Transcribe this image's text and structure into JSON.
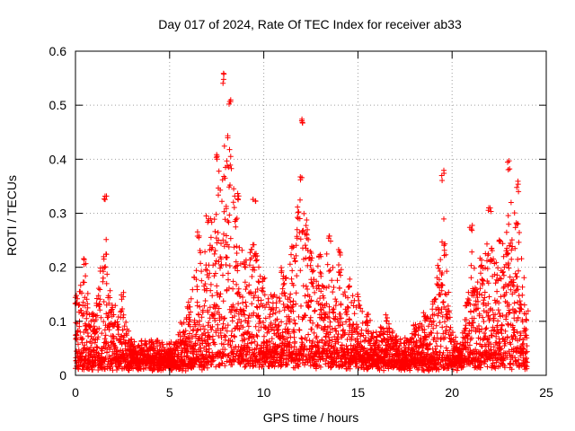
{
  "chart_data": {
    "type": "scatter",
    "title": "Day 017 of 2024, Rate Of TEC Index for receiver ab33",
    "xlabel": "GPS time / hours",
    "ylabel": "ROTI / TECUs",
    "xlim": [
      0,
      25
    ],
    "ylim": [
      0,
      0.6
    ],
    "xticks": [
      "0",
      "5",
      "10",
      "15",
      "20",
      "25"
    ],
    "yticks": [
      "0",
      "0.1",
      "0.2",
      "0.3",
      "0.4",
      "0.5",
      "0.6"
    ],
    "grid": true,
    "marker": "plus",
    "color": "#ff0000",
    "series": [
      {
        "values_summary": "dense ROTI samples over 0-24 h",
        "envelope": [
          {
            "x": 0.0,
            "y": 0.15
          },
          {
            "x": 0.5,
            "y": 0.22
          },
          {
            "x": 1.0,
            "y": 0.12
          },
          {
            "x": 1.6,
            "y": 0.34
          },
          {
            "x": 2.0,
            "y": 0.14
          },
          {
            "x": 2.5,
            "y": 0.16
          },
          {
            "x": 3.0,
            "y": 0.07
          },
          {
            "x": 4.0,
            "y": 0.07
          },
          {
            "x": 5.0,
            "y": 0.06
          },
          {
            "x": 6.0,
            "y": 0.14
          },
          {
            "x": 6.5,
            "y": 0.27
          },
          {
            "x": 7.0,
            "y": 0.3
          },
          {
            "x": 7.5,
            "y": 0.41
          },
          {
            "x": 7.9,
            "y": 0.56
          },
          {
            "x": 8.2,
            "y": 0.52
          },
          {
            "x": 8.6,
            "y": 0.34
          },
          {
            "x": 9.0,
            "y": 0.22
          },
          {
            "x": 9.5,
            "y": 0.33
          },
          {
            "x": 10.0,
            "y": 0.18
          },
          {
            "x": 10.5,
            "y": 0.15
          },
          {
            "x": 11.0,
            "y": 0.2
          },
          {
            "x": 11.5,
            "y": 0.24
          },
          {
            "x": 12.0,
            "y": 0.48
          },
          {
            "x": 12.5,
            "y": 0.23
          },
          {
            "x": 13.0,
            "y": 0.23
          },
          {
            "x": 13.5,
            "y": 0.26
          },
          {
            "x": 14.0,
            "y": 0.24
          },
          {
            "x": 14.5,
            "y": 0.18
          },
          {
            "x": 15.0,
            "y": 0.15
          },
          {
            "x": 15.5,
            "y": 0.12
          },
          {
            "x": 16.0,
            "y": 0.08
          },
          {
            "x": 16.5,
            "y": 0.12
          },
          {
            "x": 17.0,
            "y": 0.08
          },
          {
            "x": 17.5,
            "y": 0.07
          },
          {
            "x": 18.0,
            "y": 0.1
          },
          {
            "x": 18.5,
            "y": 0.12
          },
          {
            "x": 19.0,
            "y": 0.14
          },
          {
            "x": 19.5,
            "y": 0.38
          },
          {
            "x": 20.0,
            "y": 0.08
          },
          {
            "x": 20.5,
            "y": 0.06
          },
          {
            "x": 21.0,
            "y": 0.28
          },
          {
            "x": 21.5,
            "y": 0.22
          },
          {
            "x": 22.0,
            "y": 0.32
          },
          {
            "x": 22.5,
            "y": 0.26
          },
          {
            "x": 23.0,
            "y": 0.4
          },
          {
            "x": 23.5,
            "y": 0.36
          },
          {
            "x": 24.0,
            "y": 0.12
          }
        ],
        "baseline": [
          {
            "x": 0.0,
            "y": 0.02
          },
          {
            "x": 2.0,
            "y": 0.02
          },
          {
            "x": 4.0,
            "y": 0.02
          },
          {
            "x": 6.0,
            "y": 0.02
          },
          {
            "x": 8.0,
            "y": 0.03
          },
          {
            "x": 10.0,
            "y": 0.03
          },
          {
            "x": 12.0,
            "y": 0.03
          },
          {
            "x": 14.0,
            "y": 0.03
          },
          {
            "x": 16.0,
            "y": 0.02
          },
          {
            "x": 18.0,
            "y": 0.02
          },
          {
            "x": 20.0,
            "y": 0.02
          },
          {
            "x": 22.0,
            "y": 0.03
          },
          {
            "x": 24.0,
            "y": 0.02
          }
        ]
      }
    ]
  }
}
